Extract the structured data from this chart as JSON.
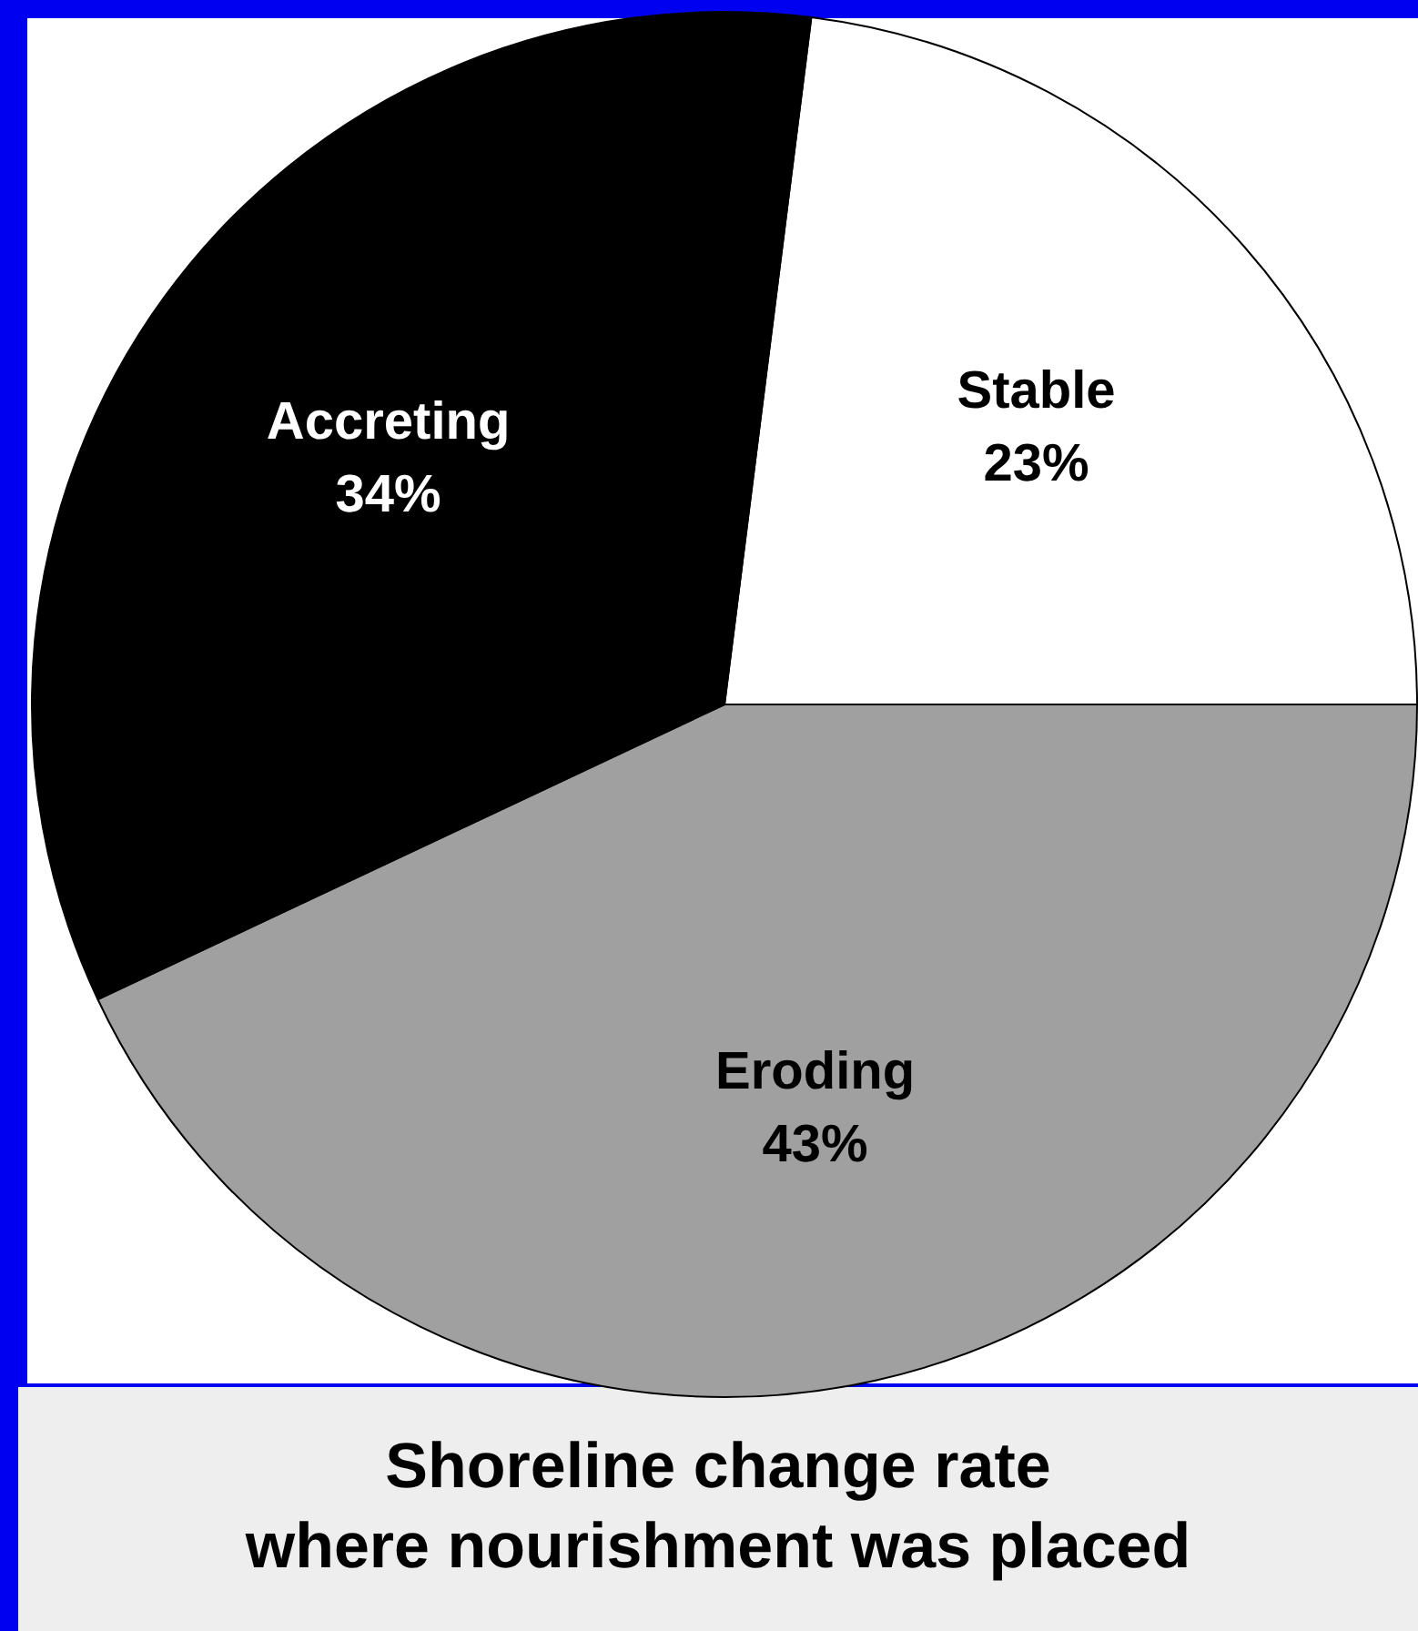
{
  "chart_data": {
    "type": "pie",
    "title": "Shoreline change rate\nwhere nourishment was placed",
    "categories": [
      "Stable",
      "Eroding",
      "Accreting"
    ],
    "values": [
      23,
      43,
      34
    ],
    "colors": [
      "#ffffff",
      "#a0a0a0",
      "#000000"
    ],
    "value_labels": [
      "23%",
      "43%",
      "34%"
    ],
    "legend": false
  }
}
